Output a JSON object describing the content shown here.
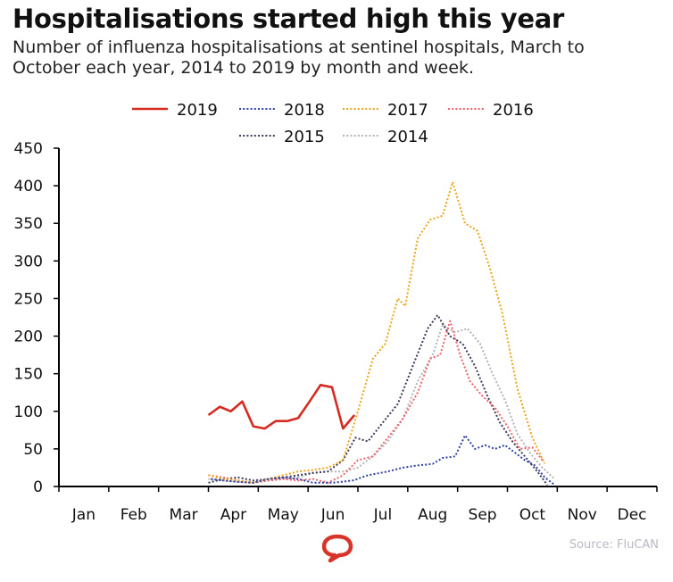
{
  "header": {
    "title": "Hospitalisations started high this year",
    "subtitle": "Number of influenza hospitalisations at sentinel hospitals, March to October each year, 2014 to 2019 by month and week."
  },
  "source": "Source: FluCAN",
  "chart_data": {
    "type": "line",
    "title": "Hospitalisations started high this year",
    "xlabel": "",
    "ylabel": "",
    "x_unit": "month (fractional, Jan = 0)",
    "xlim": [
      0,
      12
    ],
    "ylim": [
      0,
      450
    ],
    "yticks": [
      0,
      50,
      100,
      150,
      200,
      250,
      300,
      350,
      400,
      450
    ],
    "categories": [
      "Jan",
      "Feb",
      "Mar",
      "Apr",
      "May",
      "Jun",
      "Jul",
      "Aug",
      "Sep",
      "Oct",
      "Nov",
      "Dec"
    ],
    "grid": false,
    "legend_position": "top-center",
    "series": [
      {
        "name": "2019",
        "color": "#d62a20",
        "dash": "solid",
        "x": [
          3.0,
          3.23,
          3.45,
          3.68,
          3.9,
          4.13,
          4.35,
          4.58,
          4.8,
          5.03,
          5.25,
          5.48,
          5.7,
          5.93
        ],
        "y": [
          95,
          106,
          100,
          113,
          80,
          77,
          87,
          87,
          91,
          113,
          135,
          132,
          77,
          95
        ]
      },
      {
        "name": "2018",
        "color": "#2e3ea3",
        "dash": "dotted",
        "x": [
          3.05,
          3.3,
          3.6,
          3.9,
          4.2,
          4.5,
          4.8,
          5.1,
          5.5,
          5.9,
          6.2,
          6.6,
          6.9,
          7.2,
          7.5,
          7.7,
          7.95,
          8.15,
          8.35,
          8.55,
          8.75,
          8.95,
          9.15,
          9.35,
          9.55,
          9.75,
          9.95
        ],
        "y": [
          10,
          8,
          6,
          5,
          10,
          12,
          10,
          5,
          5,
          8,
          15,
          20,
          25,
          28,
          30,
          38,
          40,
          68,
          50,
          55,
          50,
          55,
          45,
          35,
          28,
          12,
          2
        ]
      },
      {
        "name": "2017",
        "color": "#f0a417",
        "dash": "dotted",
        "x": [
          3.0,
          3.3,
          3.6,
          3.9,
          4.2,
          4.5,
          4.8,
          5.1,
          5.4,
          5.7,
          6.0,
          6.3,
          6.55,
          6.8,
          6.95,
          7.2,
          7.45,
          7.7,
          7.9,
          8.15,
          8.4,
          8.65,
          8.9,
          9.2,
          9.5,
          9.75
        ],
        "y": [
          15,
          10,
          8,
          5,
          10,
          15,
          20,
          22,
          25,
          35,
          100,
          170,
          190,
          250,
          240,
          330,
          355,
          360,
          405,
          350,
          340,
          290,
          230,
          130,
          65,
          30
        ]
      },
      {
        "name": "2016",
        "color": "#f0616a",
        "dash": "dotted",
        "x": [
          3.0,
          3.3,
          3.6,
          3.9,
          4.2,
          4.5,
          4.8,
          5.1,
          5.4,
          5.7,
          6.0,
          6.3,
          6.6,
          6.9,
          7.2,
          7.45,
          7.65,
          7.85,
          8.05,
          8.25,
          8.5,
          8.75,
          9.0,
          9.25,
          9.5,
          9.7
        ],
        "y": [
          15,
          12,
          8,
          5,
          8,
          10,
          8,
          10,
          5,
          15,
          35,
          40,
          65,
          90,
          125,
          170,
          175,
          220,
          175,
          140,
          120,
          105,
          80,
          50,
          52,
          35
        ]
      },
      {
        "name": "2015",
        "color": "#3a3a5a",
        "dash": "dotted",
        "x": [
          3.0,
          3.3,
          3.6,
          3.9,
          4.2,
          4.5,
          4.8,
          5.1,
          5.4,
          5.7,
          5.95,
          6.2,
          6.5,
          6.8,
          7.1,
          7.4,
          7.6,
          7.85,
          8.1,
          8.35,
          8.6,
          8.85,
          9.1,
          9.35,
          9.6,
          9.8
        ],
        "y": [
          5,
          10,
          12,
          8,
          10,
          12,
          15,
          18,
          20,
          35,
          65,
          60,
          85,
          110,
          160,
          210,
          228,
          200,
          190,
          160,
          120,
          85,
          60,
          40,
          20,
          2
        ]
      },
      {
        "name": "2014",
        "color": "#b4b4b8",
        "dash": "dotted",
        "x": [
          3.0,
          3.3,
          3.6,
          3.9,
          4.2,
          4.5,
          4.8,
          5.1,
          5.4,
          5.7,
          6.0,
          6.3,
          6.6,
          6.9,
          7.2,
          7.5,
          7.7,
          7.95,
          8.2,
          8.45,
          8.7,
          8.95,
          9.2,
          9.45,
          9.7,
          9.95
        ],
        "y": [
          10,
          8,
          6,
          5,
          8,
          10,
          12,
          18,
          20,
          20,
          25,
          40,
          60,
          90,
          140,
          175,
          215,
          205,
          210,
          190,
          150,
          115,
          70,
          45,
          25,
          10
        ]
      }
    ]
  }
}
